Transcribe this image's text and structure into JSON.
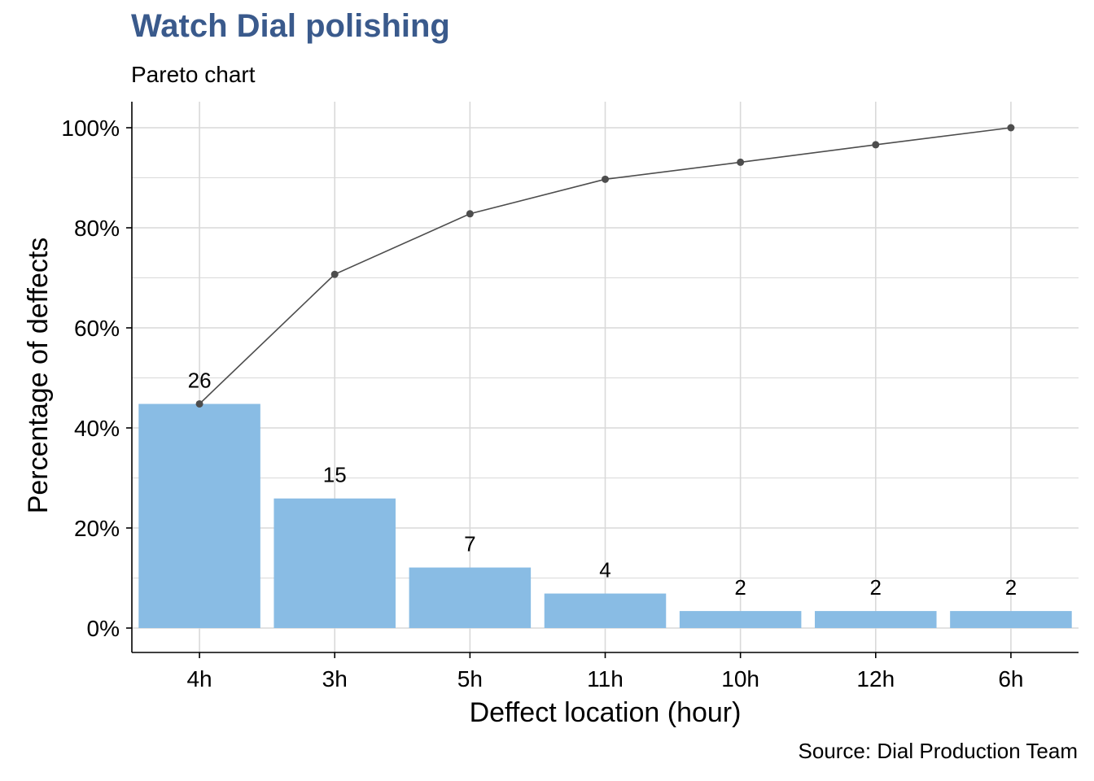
{
  "chart_data": {
    "type": "bar",
    "title": "Watch Dial polishing",
    "subtitle": "Pareto chart",
    "caption": "Source: Dial Production Team",
    "xlabel": "Deffect location (hour)",
    "ylabel": "Percentage of deffects",
    "categories": [
      "4h",
      "3h",
      "5h",
      "11h",
      "10h",
      "12h",
      "6h"
    ],
    "counts": [
      26,
      15,
      7,
      4,
      2,
      2,
      2
    ],
    "bar_percent": [
      44.8,
      25.9,
      12.1,
      6.9,
      3.4,
      3.4,
      3.4
    ],
    "cumulative_percent": [
      44.8,
      70.7,
      82.8,
      89.7,
      93.1,
      96.6,
      100.0
    ],
    "ylim": [
      -5,
      105
    ],
    "yticks": [
      0,
      20,
      40,
      60,
      80,
      100
    ],
    "ytick_labels": [
      "0%",
      "20%",
      "40%",
      "60%",
      "80%",
      "100%"
    ],
    "grid": true,
    "colors": {
      "bar": "#89BCE4",
      "line": "#4D4D4D",
      "title": "#3A5A8C",
      "grid": "#D9D9D9"
    }
  }
}
